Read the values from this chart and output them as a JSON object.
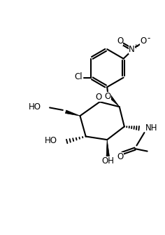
{
  "bg_color": "#ffffff",
  "line_color": "#000000",
  "line_width": 1.5,
  "font_size": 8.5,
  "figsize": [
    2.36,
    3.35
  ],
  "dpi": 100,
  "xlim": [
    0,
    10
  ],
  "ylim": [
    0,
    14.2
  ]
}
